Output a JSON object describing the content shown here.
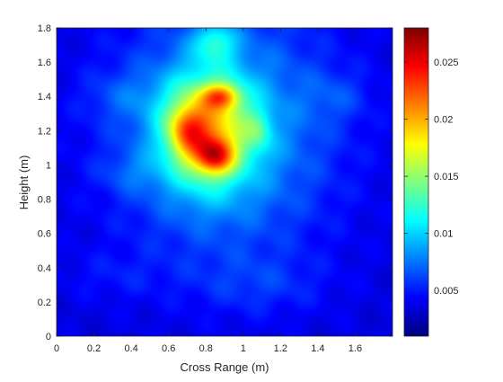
{
  "chart_data": {
    "type": "heatmap",
    "title": "",
    "xlabel": "Cross Range (m)",
    "ylabel": "Height (m)",
    "xlim": [
      0,
      1.8
    ],
    "ylim": [
      0,
      1.8
    ],
    "xticks": [
      "0",
      "0.2",
      "0.4",
      "0.6",
      "0.8",
      "1",
      "1.2",
      "1.4",
      "1.6"
    ],
    "xtick_values": [
      0,
      0.2,
      0.4,
      0.6,
      0.8,
      1.0,
      1.2,
      1.4,
      1.6
    ],
    "yticks": [
      "0",
      "0.2",
      "0.4",
      "0.6",
      "0.8",
      "1",
      "1.2",
      "1.4",
      "1.6",
      "1.8"
    ],
    "ytick_values": [
      0,
      0.2,
      0.4,
      0.6,
      0.8,
      1.0,
      1.2,
      1.4,
      1.6,
      1.8
    ],
    "colormap": "jet",
    "colorbar": {
      "range": [
        0.001,
        0.028
      ],
      "ticks": [
        "0.005",
        "0.01",
        "0.015",
        "0.02",
        "0.025"
      ],
      "tick_values": [
        0.005,
        0.01,
        0.015,
        0.02,
        0.025
      ]
    },
    "grid": false,
    "components": [
      {
        "x": 0.9,
        "y": 1.2,
        "sx": 0.4,
        "sy": 0.5,
        "amp": 0.006
      },
      {
        "x": 0.8,
        "y": 1.2,
        "sx": 0.16,
        "sy": 0.22,
        "amp": 0.011
      },
      {
        "x": 0.85,
        "y": 1.05,
        "sx": 0.07,
        "sy": 0.07,
        "amp": 0.009
      },
      {
        "x": 0.7,
        "y": 1.2,
        "sx": 0.07,
        "sy": 0.1,
        "amp": 0.006
      },
      {
        "x": 0.88,
        "y": 1.4,
        "sx": 0.07,
        "sy": 0.05,
        "amp": 0.008
      },
      {
        "x": 1.08,
        "y": 1.2,
        "sx": 0.05,
        "sy": 0.08,
        "amp": 0.003
      },
      {
        "x": 0.85,
        "y": 1.72,
        "sx": 0.08,
        "sy": 0.08,
        "amp": 0.005
      },
      {
        "x": 0.35,
        "y": 1.4,
        "sx": 0.15,
        "sy": 0.1,
        "amp": 0.0015
      },
      {
        "x": 1.5,
        "y": 1.4,
        "sx": 0.12,
        "sy": 0.1,
        "amp": 0.0015
      },
      {
        "x": 0.4,
        "y": 0.95,
        "sx": 0.12,
        "sy": 0.08,
        "amp": 0.0015
      },
      {
        "x": 1.1,
        "y": 0.3,
        "sx": 0.25,
        "sy": 0.12,
        "amp": 0.0015
      },
      {
        "x": 0.3,
        "y": 0.35,
        "sx": 0.2,
        "sy": 0.1,
        "amp": 0.001
      }
    ],
    "background_level": 0.0035
  }
}
